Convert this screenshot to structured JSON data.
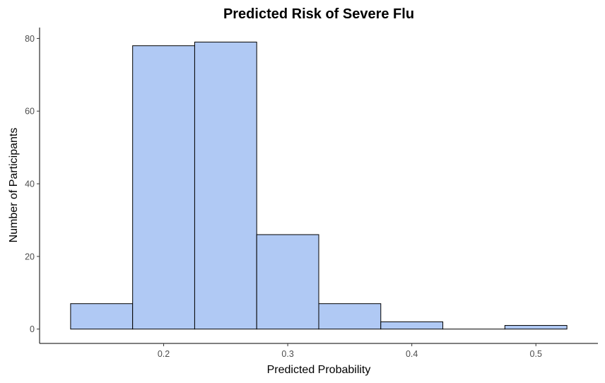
{
  "chart_data": {
    "type": "histogram",
    "title": "Predicted Risk of Severe Flu",
    "xlabel": "Predicted Probability",
    "ylabel": "Number of Participants",
    "bin_width": 0.05,
    "bins": [
      {
        "start": 0.125,
        "end": 0.175,
        "count": 7
      },
      {
        "start": 0.175,
        "end": 0.225,
        "count": 78
      },
      {
        "start": 0.225,
        "end": 0.275,
        "count": 79
      },
      {
        "start": 0.275,
        "end": 0.325,
        "count": 26
      },
      {
        "start": 0.325,
        "end": 0.375,
        "count": 7
      },
      {
        "start": 0.375,
        "end": 0.425,
        "count": 2
      },
      {
        "start": 0.425,
        "end": 0.475,
        "count": 0
      },
      {
        "start": 0.475,
        "end": 0.525,
        "count": 1
      }
    ],
    "xlim": [
      0.1,
      0.55
    ],
    "ylim": [
      -3.95,
      83
    ],
    "x_ticks": [
      0.2,
      0.3,
      0.4,
      0.5
    ],
    "x_tick_labels": [
      "0.2",
      "0.3",
      "0.4",
      "0.5"
    ],
    "y_ticks": [
      0,
      20,
      40,
      60,
      80
    ],
    "y_tick_labels": [
      "0",
      "20",
      "40",
      "60",
      "80"
    ],
    "bar_fill": "#b0c9f4",
    "bar_outline": "#000000",
    "grid": false,
    "legend": "none"
  }
}
